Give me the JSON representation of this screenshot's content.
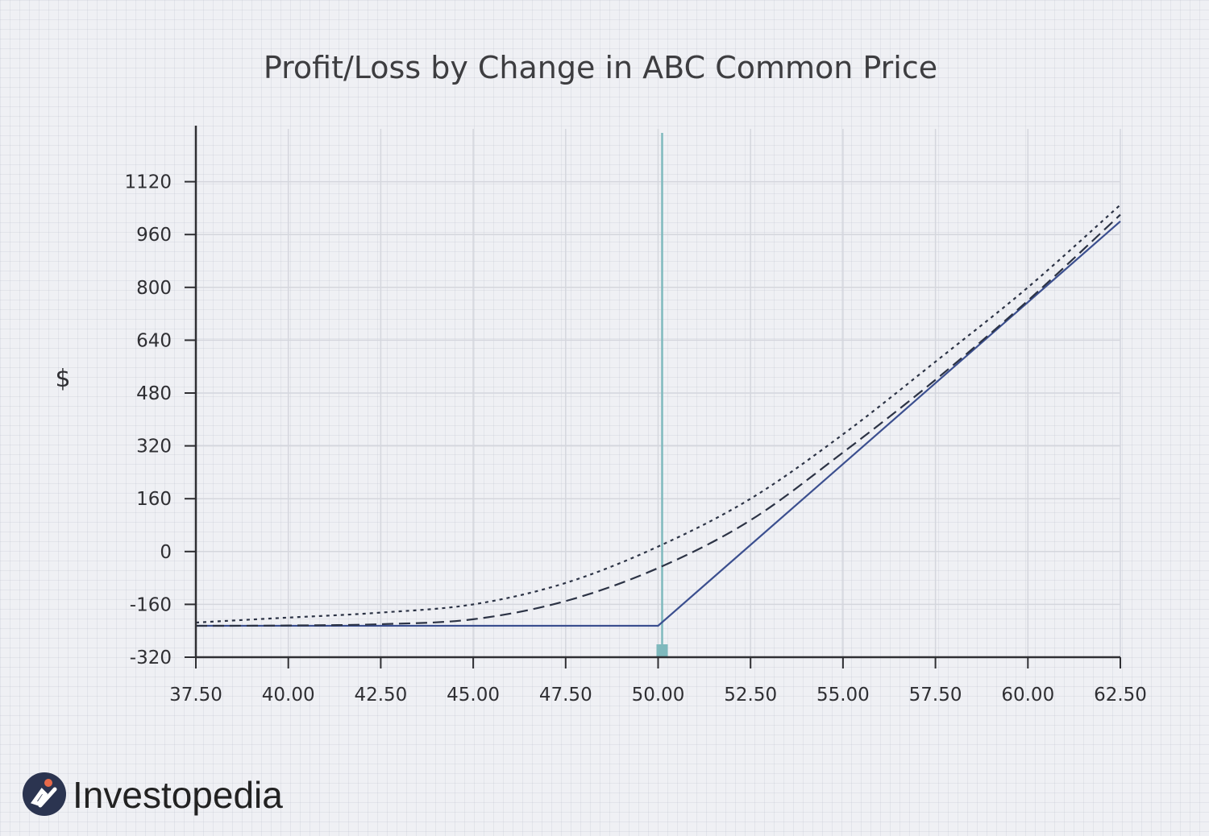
{
  "chart_data": {
    "type": "line",
    "title": "Profit/Loss by Change in ABC Common Price",
    "xlabel": "",
    "ylabel": "$",
    "xlim": [
      37.5,
      62.5
    ],
    "ylim": [
      -320,
      1280
    ],
    "x_ticks": [
      "37.50",
      "40.00",
      "42.50",
      "45.00",
      "47.50",
      "50.00",
      "52.50",
      "55.00",
      "57.50",
      "60.00",
      "62.50"
    ],
    "y_ticks": [
      "-320",
      "-160",
      "0",
      "160",
      "320",
      "480",
      "640",
      "800",
      "960",
      "1120"
    ],
    "grid": true,
    "strike_marker_x": 50.0,
    "series": [
      {
        "style": "solid",
        "color": "#3b4f8f",
        "x": [
          37.5,
          50.0,
          62.5
        ],
        "y": [
          -225,
          -225,
          1000
        ]
      },
      {
        "style": "dashed",
        "color": "#2c3345",
        "x": [
          37.5,
          40.0,
          42.5,
          45.0,
          47.5,
          50.0,
          52.5,
          55.0,
          57.5,
          60.0,
          62.5
        ],
        "y": [
          -225,
          -224,
          -220,
          -205,
          -150,
          -50,
          95,
          300,
          520,
          760,
          1020
        ]
      },
      {
        "style": "dotted",
        "color": "#2c3345",
        "x": [
          37.5,
          40.0,
          42.5,
          45.0,
          47.5,
          50.0,
          52.5,
          55.0,
          57.5,
          60.0,
          62.5
        ],
        "y": [
          -215,
          -200,
          -185,
          -160,
          -95,
          15,
          160,
          355,
          575,
          800,
          1050
        ]
      }
    ]
  },
  "branding": {
    "logo_text": "Investopedia"
  },
  "colors": {
    "background": "#eff0f4",
    "grid": "#d4d6dd",
    "axis": "#2f2f33",
    "strike_line": "#7fb9bd",
    "logo_circle": "#2b3450",
    "logo_dot": "#e86a4a"
  }
}
